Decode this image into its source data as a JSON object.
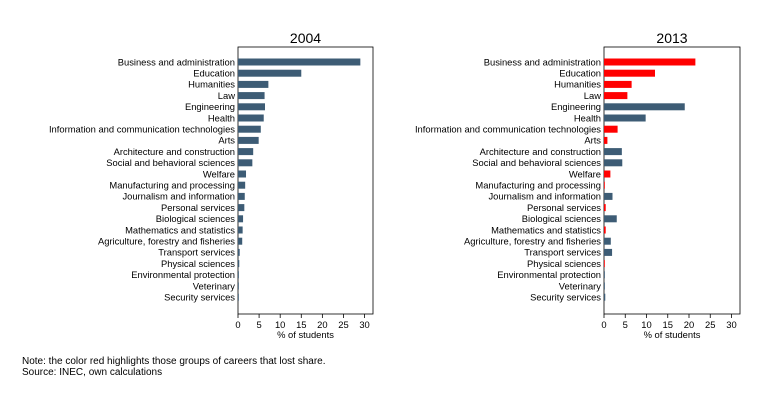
{
  "chart_data": [
    {
      "type": "bar",
      "orientation": "horizontal",
      "title": "2004",
      "xlabel": "% of students",
      "xlim": [
        0,
        32
      ],
      "xticks": [
        0,
        5,
        10,
        15,
        20,
        25,
        30
      ],
      "categories": [
        "Business and administration",
        "Education",
        "Humanities",
        "Law",
        "Engineering",
        "Health",
        "Information and communication technologies",
        "Arts",
        "Architecture and construction",
        "Social and behavioral sciences",
        "Welfare",
        "Manufacturing and processing",
        "Journalism and information",
        "Personal services",
        "Biological sciences",
        "Mathematics and statistics",
        "Agriculture, forestry and fisheries",
        "Transport services",
        "Physical sciences",
        "Environmental protection",
        "Veterinary",
        "Security services"
      ],
      "values": [
        29,
        15,
        7.2,
        6.3,
        6.4,
        6.1,
        5.4,
        4.9,
        3.6,
        3.4,
        1.9,
        1.7,
        1.6,
        1.5,
        1.2,
        1.1,
        1.0,
        0.4,
        0.3,
        0.2,
        0.1,
        0.1
      ],
      "lost_share": [
        false,
        false,
        false,
        false,
        false,
        false,
        false,
        false,
        false,
        false,
        false,
        false,
        false,
        false,
        false,
        false,
        false,
        false,
        false,
        false,
        false,
        false
      ]
    },
    {
      "type": "bar",
      "orientation": "horizontal",
      "title": "2013",
      "xlabel": "% of students",
      "xlim": [
        0,
        32
      ],
      "xticks": [
        0,
        5,
        10,
        15,
        20,
        25,
        30
      ],
      "categories": [
        "Business and administration",
        "Education",
        "Humanities",
        "Law",
        "Engineering",
        "Health",
        "Information and communication technologies",
        "Arts",
        "Architecture and construction",
        "Social and behavioral sciences",
        "Welfare",
        "Manufacturing and processing",
        "Journalism and information",
        "Personal services",
        "Biological sciences",
        "Mathematics and statistics",
        "Agriculture, forestry and fisheries",
        "Transport services",
        "Physical sciences",
        "Environmental protection",
        "Veterinary",
        "Security services"
      ],
      "values": [
        21.5,
        12,
        6.5,
        5.5,
        19,
        9.8,
        3.2,
        0.8,
        4.2,
        4.3,
        1.5,
        0.1,
        2.0,
        0.4,
        3.0,
        0.4,
        1.6,
        1.9,
        0.1,
        0.2,
        0.2,
        0.3
      ],
      "lost_share": [
        true,
        true,
        true,
        true,
        false,
        false,
        true,
        true,
        false,
        false,
        true,
        true,
        false,
        true,
        false,
        true,
        false,
        false,
        true,
        false,
        false,
        false
      ]
    }
  ],
  "colors": {
    "bar": "#3d5c75",
    "lost_share": "#ff0000",
    "frame": "#000000"
  },
  "notes": {
    "line1": "Note: the color red highlights those groups of careers that lost share.",
    "line2": "Source: INEC, own calculations"
  }
}
